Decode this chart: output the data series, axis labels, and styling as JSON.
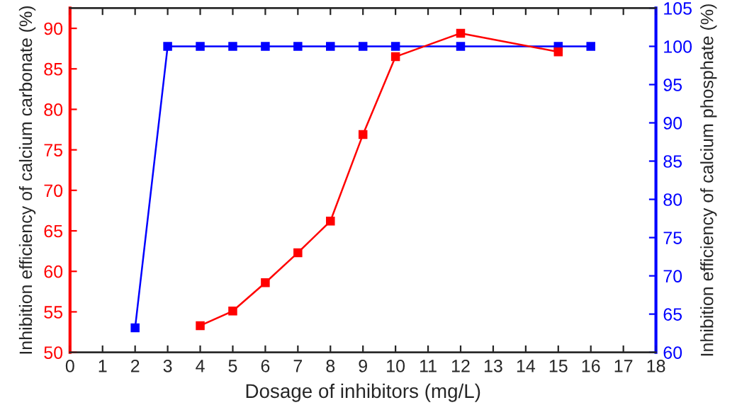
{
  "chart_data": {
    "type": "line",
    "xlabel": "Dosage of inhibitors (mg/L)",
    "ylabel": "Inhibition efficiency of calcium carbonate (%)",
    "y2label": "Inhibition efficiency of calcium phosphate (%)",
    "xlim": [
      0,
      18
    ],
    "xticks": [
      0,
      1,
      2,
      3,
      4,
      5,
      6,
      7,
      8,
      9,
      10,
      11,
      12,
      13,
      14,
      15,
      16,
      17,
      18
    ],
    "ylim": [
      50,
      92.5
    ],
    "yticks": [
      50,
      55,
      60,
      65,
      70,
      75,
      80,
      85,
      90
    ],
    "y2lim": [
      60,
      105
    ],
    "y2ticks": [
      60,
      65,
      70,
      75,
      80,
      85,
      90,
      95,
      100,
      105
    ],
    "marker": "square",
    "grid": false,
    "series": [
      {
        "color": "#ff0000",
        "x": [
          4,
          5,
          6,
          7,
          8,
          9,
          10,
          12,
          15
        ],
        "values": [
          53.3,
          55.1,
          58.6,
          62.3,
          66.2,
          76.9,
          86.5,
          89.4,
          87.1
        ]
      },
      {
        "color": "#0000ff",
        "axis": "y2",
        "x": [
          2,
          3,
          4,
          5,
          6,
          7,
          8,
          9,
          10,
          12,
          15,
          16
        ],
        "values": [
          63.2,
          100,
          100,
          100,
          100,
          100,
          100,
          100,
          100,
          100,
          100,
          100
        ]
      }
    ]
  }
}
